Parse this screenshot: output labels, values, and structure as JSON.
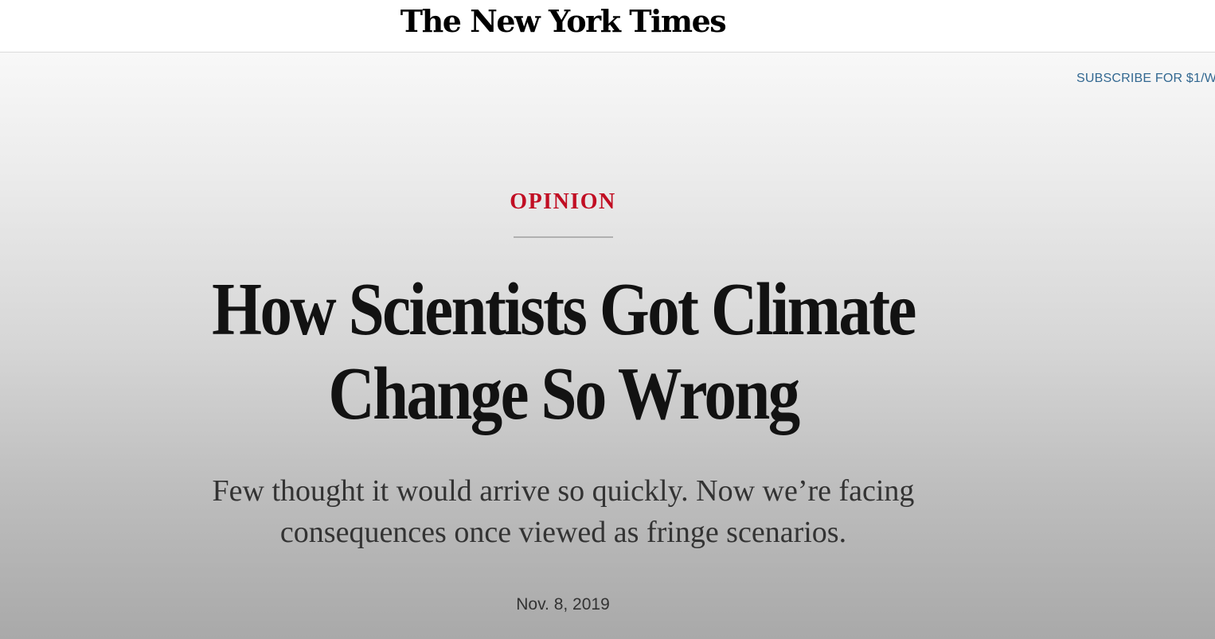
{
  "masthead": {
    "logo_text": "The New York Times"
  },
  "header": {
    "subscribe_label": "SUBSCRIBE FOR $1/W"
  },
  "article": {
    "kicker": "OPINION",
    "headline": "How Scientists Got Climate Change So Wrong",
    "dek": "Few thought it would arrive so quickly. Now we’re facing consequences once viewed as fringe scenarios.",
    "date": "Nov. 8, 2019"
  },
  "colors": {
    "kicker": "#c10e23",
    "subscribe_link": "#326891",
    "headline": "#121212"
  }
}
